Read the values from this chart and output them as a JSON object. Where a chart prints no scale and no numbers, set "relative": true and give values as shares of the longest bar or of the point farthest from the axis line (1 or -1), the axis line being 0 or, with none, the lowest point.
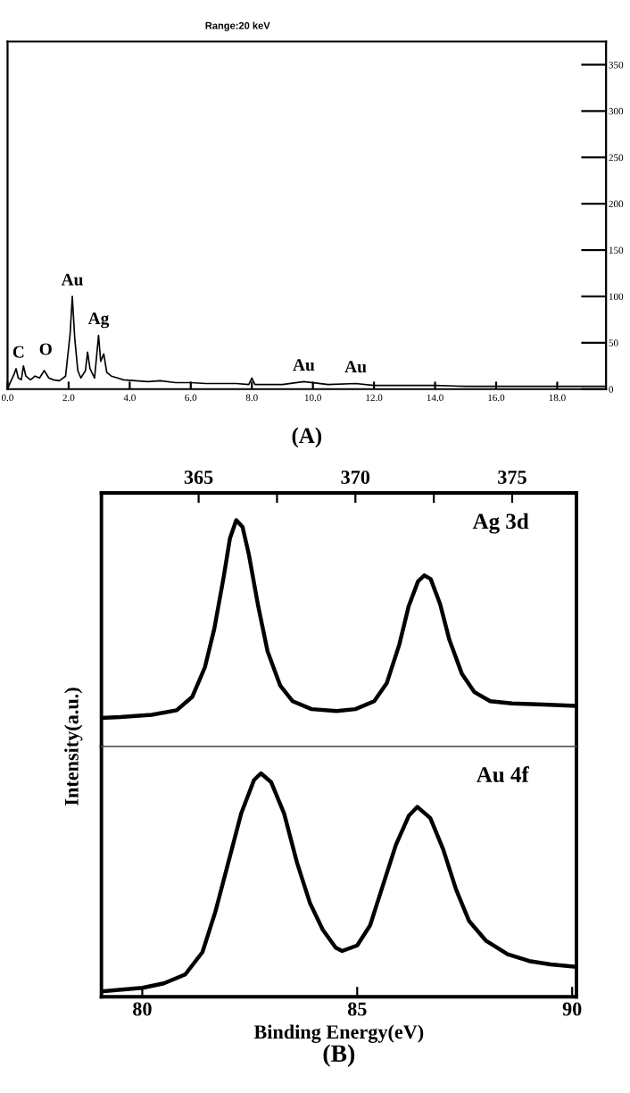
{
  "chart_data": [
    {
      "type": "line",
      "xlim": [
        0,
        19.6
      ],
      "ylim": [
        0,
        375
      ],
      "xticks": [
        {
          "value": 0,
          "label": "0.0"
        },
        {
          "value": 2,
          "label": "2.0"
        },
        {
          "value": 4,
          "label": "4.0"
        },
        {
          "value": 6,
          "label": "6.0"
        },
        {
          "value": 8,
          "label": "8.0"
        },
        {
          "value": 10,
          "label": "10.0"
        },
        {
          "value": 12,
          "label": "12.0"
        },
        {
          "value": 14,
          "label": "14.0"
        },
        {
          "value": 16,
          "label": "16.0"
        },
        {
          "value": 18,
          "label": "18.0"
        }
      ],
      "yticks": [
        0,
        50,
        100,
        150,
        200,
        250,
        300,
        350
      ],
      "series": [
        {
          "color": "#000000",
          "x": [
            0.0,
            0.1,
            0.2,
            0.28,
            0.35,
            0.45,
            0.52,
            0.6,
            0.75,
            0.9,
            1.05,
            1.2,
            1.35,
            1.5,
            1.7,
            1.9,
            2.05,
            2.12,
            2.2,
            2.3,
            2.4,
            2.55,
            2.62,
            2.7,
            2.85,
            2.98,
            3.05,
            3.15,
            3.25,
            3.4,
            3.6,
            3.8,
            4.2,
            4.6,
            5.0,
            5.5,
            6.0,
            6.5,
            7.0,
            7.5,
            7.9,
            8.0,
            8.1,
            8.6,
            9.0,
            9.7,
            10.5,
            11.4,
            12.0,
            13.0,
            14.0,
            15.0,
            16.0,
            17.0,
            18.0,
            19.6
          ],
          "values": [
            0,
            8,
            15,
            22,
            12,
            10,
            25,
            14,
            10,
            14,
            12,
            20,
            12,
            10,
            9,
            14,
            60,
            100,
            55,
            20,
            12,
            20,
            40,
            22,
            12,
            58,
            30,
            38,
            18,
            14,
            12,
            10,
            9,
            8,
            9,
            7,
            7,
            6,
            6,
            6,
            5,
            12,
            5,
            5,
            5,
            8,
            5,
            6,
            4,
            4,
            4,
            3,
            3,
            3,
            3,
            3
          ]
        }
      ],
      "annotations": [
        {
          "text": "C",
          "x": 0.28,
          "y": 22
        },
        {
          "text": "O",
          "x": 0.52,
          "y": 25
        },
        {
          "text": "Au",
          "x": 2.12,
          "y": 100
        },
        {
          "text": "Ag",
          "x": 2.98,
          "y": 58
        },
        {
          "text": "Au",
          "x": 9.7,
          "y": 8
        },
        {
          "text": "Au",
          "x": 11.4,
          "y": 6
        },
        "Range:20 keV",
        "(A)"
      ]
    },
    {
      "type": "line",
      "relative": true,
      "xlim": [
        361.9,
        377.05
      ],
      "xticks": [
        365,
        {
          "value": 367.5,
          "label": null
        },
        370,
        {
          "value": 372.5,
          "label": null
        },
        375
      ],
      "series": [
        {
          "color": "#000000",
          "x": [
            361.9,
            362.5,
            363.5,
            364.3,
            364.8,
            365.2,
            365.5,
            365.8,
            366.0,
            366.2,
            366.4,
            366.6,
            366.9,
            367.2,
            367.6,
            368.0,
            368.6,
            369.4,
            370.0,
            370.6,
            371.0,
            371.4,
            371.7,
            372.0,
            372.2,
            372.4,
            372.7,
            373.0,
            373.4,
            373.8,
            374.3,
            375.0,
            376.0,
            377.0
          ],
          "values": [
            0.126,
            0.13,
            0.14,
            0.16,
            0.22,
            0.35,
            0.52,
            0.75,
            0.92,
            1.0,
            0.97,
            0.85,
            0.62,
            0.42,
            0.27,
            0.2,
            0.165,
            0.157,
            0.165,
            0.2,
            0.28,
            0.45,
            0.62,
            0.73,
            0.756,
            0.74,
            0.63,
            0.47,
            0.32,
            0.24,
            0.2,
            0.19,
            0.185,
            0.18
          ]
        }
      ],
      "annotations": [
        "Ag 3d"
      ]
    },
    {
      "type": "line",
      "relative": true,
      "xlim": [
        79.05,
        90.1
      ],
      "xticks": [
        80,
        85,
        90
      ],
      "xlabel": "Binding Energy(eV)",
      "ylabel": "Intensity(a.u.)",
      "series": [
        {
          "color": "#000000",
          "x": [
            79.05,
            80.0,
            80.5,
            81.0,
            81.4,
            81.7,
            82.0,
            82.3,
            82.6,
            82.76,
            83.0,
            83.3,
            83.6,
            83.9,
            84.2,
            84.5,
            84.65,
            85.0,
            85.3,
            85.6,
            85.9,
            86.2,
            86.4,
            86.7,
            87.0,
            87.3,
            87.6,
            88.0,
            88.5,
            89.0,
            89.5,
            90.1
          ],
          "values": [
            0.024,
            0.04,
            0.06,
            0.1,
            0.2,
            0.38,
            0.6,
            0.82,
            0.97,
            1.0,
            0.96,
            0.82,
            0.6,
            0.42,
            0.3,
            0.22,
            0.205,
            0.23,
            0.32,
            0.5,
            0.68,
            0.81,
            0.85,
            0.8,
            0.66,
            0.48,
            0.34,
            0.25,
            0.19,
            0.16,
            0.145,
            0.134
          ]
        }
      ],
      "annotations": [
        "Au 4f",
        "(B)"
      ]
    }
  ]
}
